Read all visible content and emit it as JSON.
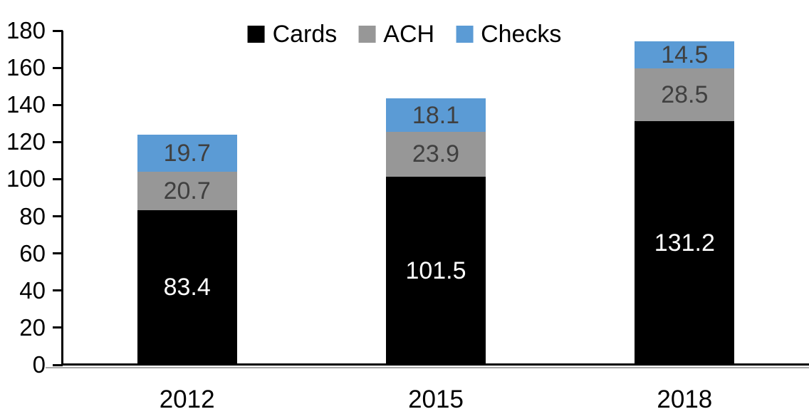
{
  "chart_data": {
    "type": "bar",
    "stacked": true,
    "title": "",
    "categories": [
      "2012",
      "2015",
      "2018"
    ],
    "series": [
      {
        "name": "Cards",
        "color": "#000000",
        "label_color": "#FFFFFF",
        "values": [
          83.4,
          101.5,
          131.2
        ]
      },
      {
        "name": "ACH",
        "color": "#979797",
        "label_color": "#404040",
        "values": [
          20.7,
          23.9,
          28.5
        ]
      },
      {
        "name": "Checks",
        "color": "#5B9BD5",
        "label_color": "#404040",
        "values": [
          19.7,
          18.1,
          14.5
        ]
      }
    ],
    "ylim": [
      0,
      180
    ],
    "yticks": [
      0,
      20,
      40,
      60,
      80,
      100,
      120,
      140,
      160,
      180
    ],
    "xlabel": "",
    "ylabel": "",
    "grid": false,
    "legend_position": "top-center",
    "axis_color": "#000000"
  }
}
